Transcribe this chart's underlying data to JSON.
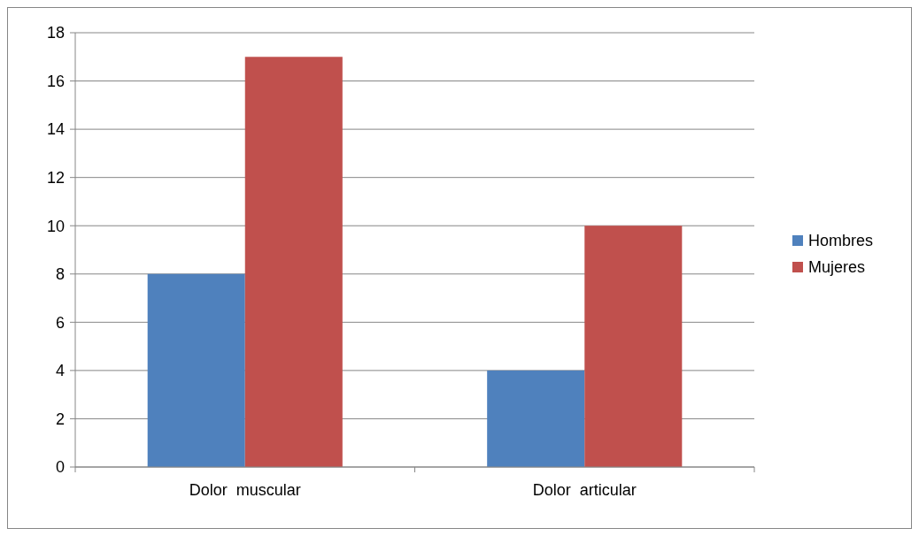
{
  "chart_data": {
    "type": "bar",
    "categories": [
      "Dolor  muscular",
      "Dolor  articular"
    ],
    "series": [
      {
        "name": "Hombres",
        "color": "#4f81bd",
        "values": [
          8,
          4
        ]
      },
      {
        "name": "Mujeres",
        "color": "#c0504d",
        "values": [
          17,
          10
        ]
      }
    ],
    "ylim": [
      0,
      18
    ],
    "yticks": [
      0,
      2,
      4,
      6,
      8,
      10,
      12,
      14,
      16,
      18
    ],
    "grid": "y",
    "legend": "right"
  }
}
